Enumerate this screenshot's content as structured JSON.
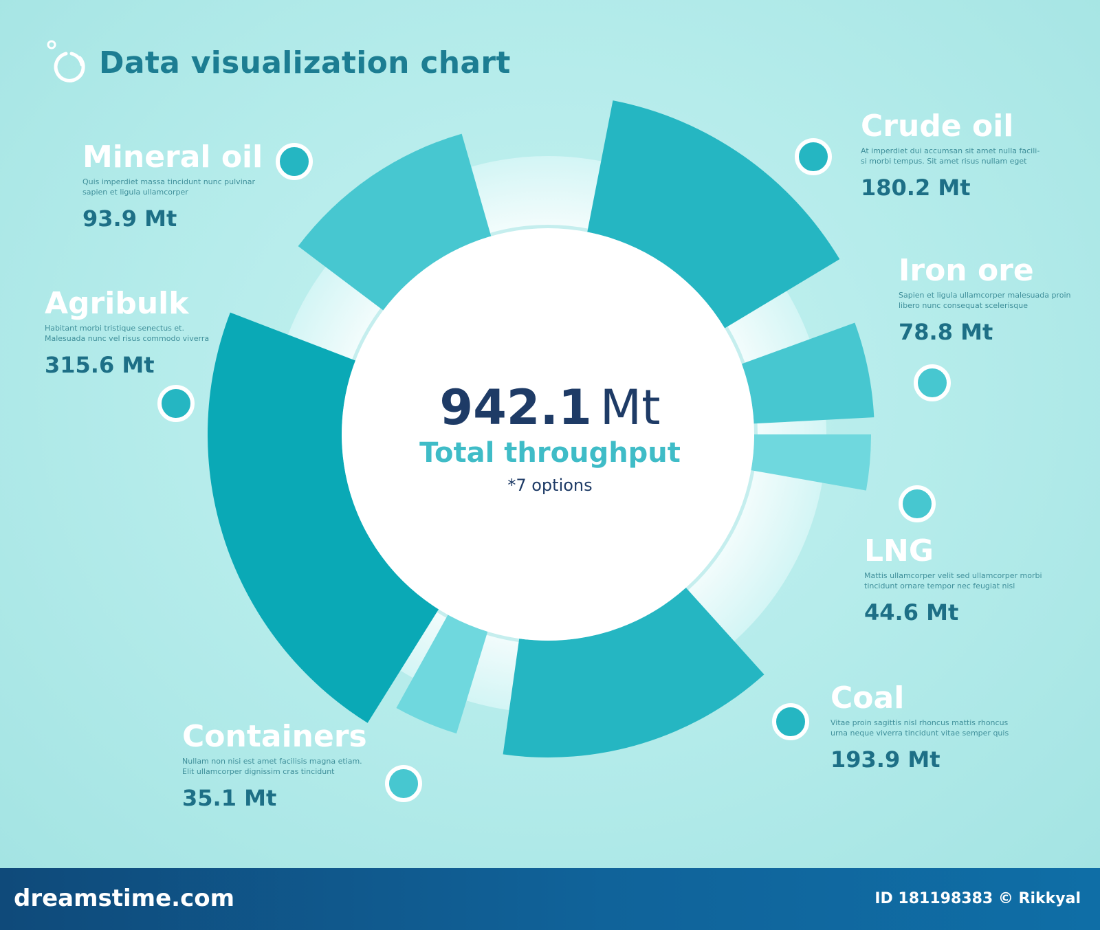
{
  "header": {
    "title": "Data visualization chart",
    "icon": "circle-dots-icon"
  },
  "center": {
    "total_value": "942.1",
    "total_unit": "Mt",
    "subtitle": "Total  throughput",
    "note": "*7 options"
  },
  "colors": {
    "background": "#b5ecec",
    "ring_dark": "#0aa9b6",
    "ring_mid": "#25b6c2",
    "ring_light": "#47c7d0",
    "ring_pale": "#6fd8de",
    "title": "#1c7d92",
    "value": "#1d6f86",
    "total": "#1e3b66",
    "subtitle": "#3fbcc7"
  },
  "chart_data": {
    "type": "pie",
    "title": "Data visualization chart",
    "unit": "Mt",
    "total": 942.1,
    "categories": [
      "Mineral oil",
      "Crude oil",
      "Iron ore",
      "LNG",
      "Coal",
      "Containers",
      "Agribulk"
    ],
    "values": [
      93.9,
      180.2,
      78.8,
      44.6,
      193.9,
      35.1,
      315.6
    ],
    "descriptions": [
      "Quis imperdiet massa tincidunt nunc pulvinar sapien et ligula ullamcorper",
      "At imperdiet dui accumsan sit amet nulla facili- si morbi tempus. Sit amet risus nullam eget",
      "Sapien et ligula ullamcorper malesuada proin libero nunc consequat scelerisque",
      "Mattis ullamcorper velit sed ullamcorper morbi tincidunt ornare tempor nec feugiat nisl",
      "Vitae proin sagittis nisl rhoncus mattis rhoncus urna neque viverra tincidunt vitae semper quis",
      "Nullam non nisi est amet facilisis magna etiam. Elit ullamcorper dignissim cras tincidunt",
      "Habitant morbi tristique senectus et. Malesuada nunc vel risus commodo viverra"
    ]
  },
  "labels": [
    {
      "name": "Mineral oil",
      "desc1": "Quis imperdiet massa tincidunt nunc pulvinar",
      "desc2": "sapien et ligula ullamcorper",
      "value": "93.9 Mt"
    },
    {
      "name": "Crude oil",
      "desc1": "At imperdiet dui accumsan sit amet nulla facili-",
      "desc2": "si morbi tempus. Sit amet risus nullam eget",
      "value": "180.2 Mt"
    },
    {
      "name": "Iron ore",
      "desc1": "Sapien et ligula ullamcorper malesuada proin",
      "desc2": "libero nunc consequat scelerisque",
      "value": "78.8 Mt"
    },
    {
      "name": "LNG",
      "desc1": "Mattis ullamcorper velit sed ullamcorper morbi",
      "desc2": "tincidunt ornare tempor nec feugiat nisl",
      "value": "44.6 Mt"
    },
    {
      "name": "Coal",
      "desc1": "Vitae proin sagittis nisl rhoncus mattis rhoncus",
      "desc2": "urna neque viverra tincidunt vitae semper quis",
      "value": "193.9 Mt"
    },
    {
      "name": "Containers",
      "desc1": "Nullam non nisi est amet facilisis magna etiam.",
      "desc2": "Elit ullamcorper dignissim cras tincidunt",
      "value": "35.1 Mt"
    },
    {
      "name": "Agribulk",
      "desc1": "Habitant morbi tristique senectus et.",
      "desc2": "Malesuada nunc vel risus commodo viverra",
      "value": "315.6 Mt"
    }
  ],
  "footer": {
    "site": "dreamstime.com",
    "credit": "ID 181198383 © Rikkyal"
  }
}
